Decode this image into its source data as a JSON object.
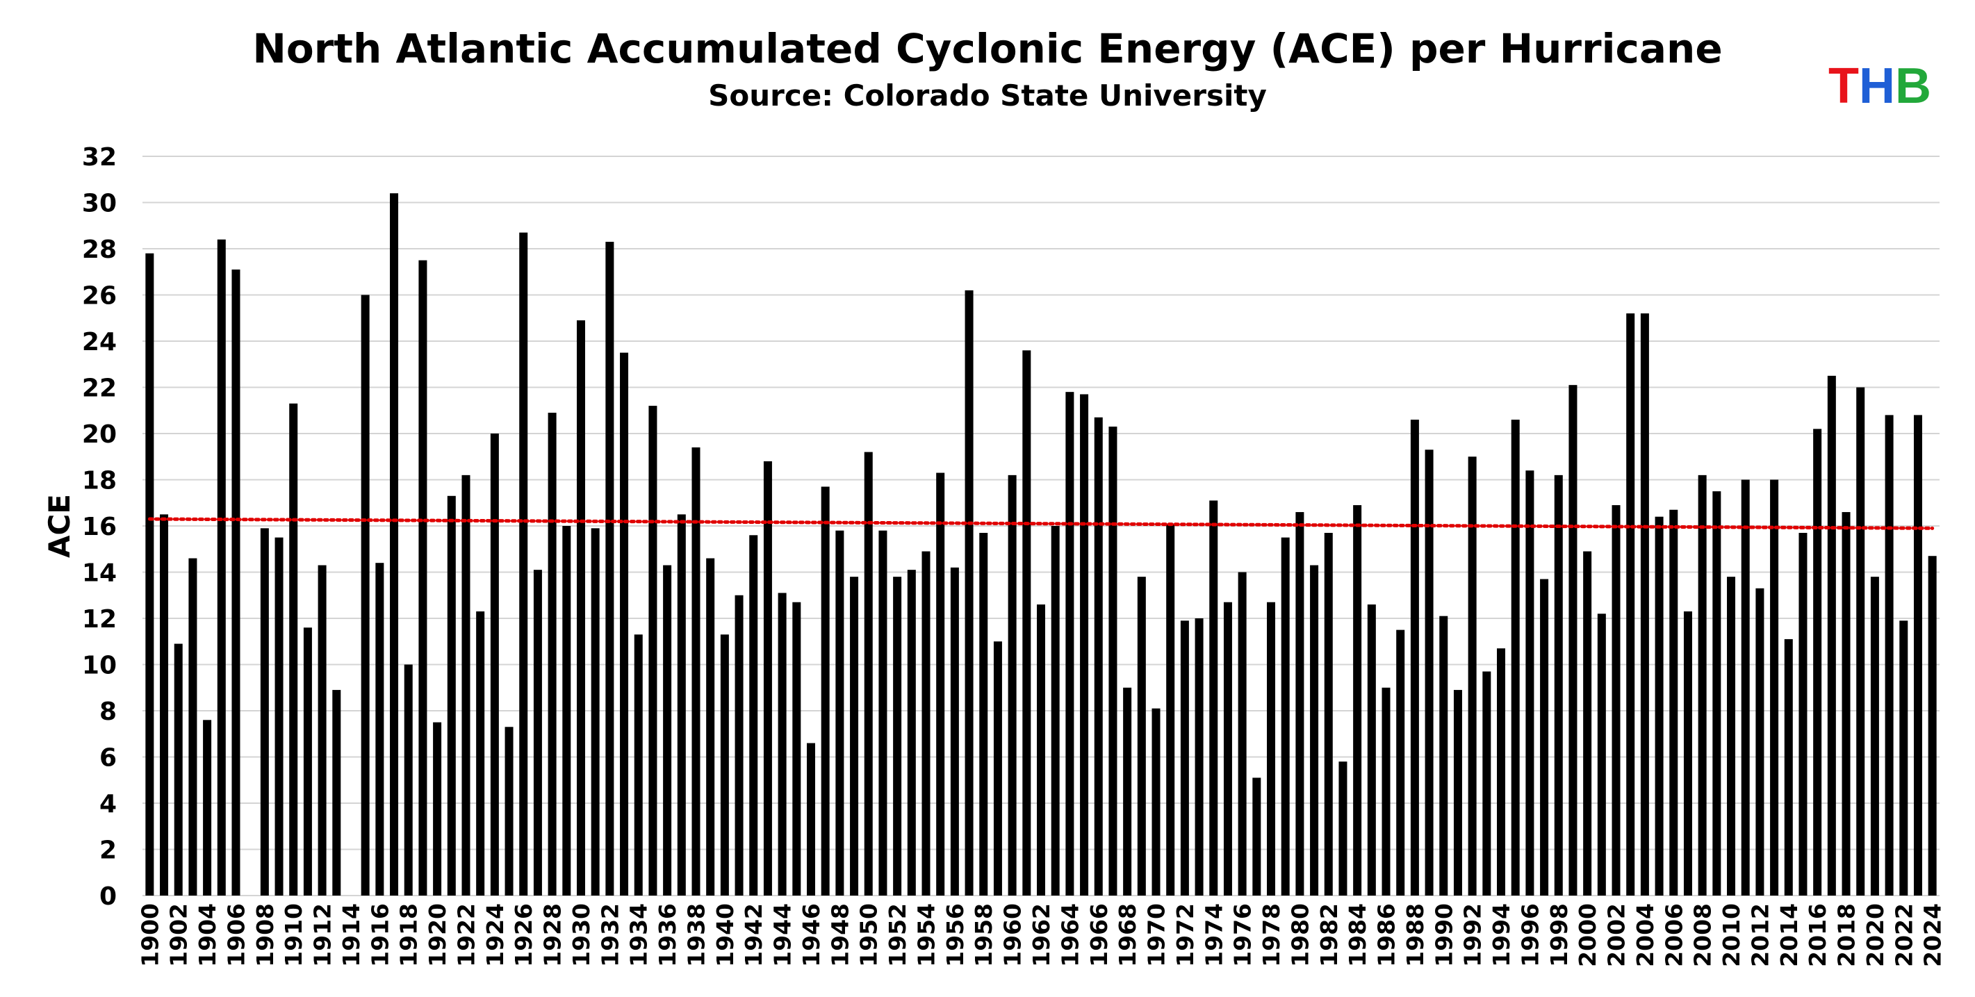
{
  "chart_data": {
    "type": "bar",
    "title": "North Atlantic Accumulated Cyclonic Energy (ACE) per Hurricane",
    "subtitle": "Source: Colorado State University",
    "logo": [
      "T",
      "H",
      "B"
    ],
    "logo_colors": [
      "#e8141b",
      "#1f5fd6",
      "#22a83a"
    ],
    "ylabel": "ACE",
    "color": "#000000",
    "grid": true,
    "ylim": [
      0,
      32
    ],
    "yticks": [
      0,
      2,
      4,
      6,
      8,
      10,
      12,
      14,
      16,
      18,
      20,
      22,
      24,
      26,
      28,
      30,
      32
    ],
    "trendline": {
      "start": 16.3,
      "end": 15.9,
      "color": "#e00000"
    },
    "categories": [
      "1900",
      null,
      "1902",
      null,
      "1904",
      null,
      "1906",
      null,
      "1908",
      null,
      "1910",
      null,
      "1912",
      null,
      "1914",
      null,
      "1916",
      null,
      "1918",
      null,
      "1920",
      null,
      "1922",
      null,
      "1924",
      null,
      "1926",
      null,
      "1928",
      null,
      "1930",
      null,
      "1932",
      null,
      "1934",
      null,
      "1936",
      null,
      "1938",
      null,
      "1940",
      null,
      "1942",
      null,
      "1944",
      null,
      "1946",
      null,
      "1948",
      null,
      "1950",
      null,
      "1952",
      null,
      "1954",
      null,
      "1956",
      null,
      "1958",
      null,
      "1960",
      null,
      "1962",
      null,
      "1964",
      null,
      "1966",
      null,
      "1968",
      null,
      "1970",
      null,
      "1972",
      null,
      "1974",
      null,
      "1976",
      null,
      "1978",
      null,
      "1980",
      null,
      "1982",
      null,
      "1984",
      null,
      "1986",
      null,
      "1988",
      null,
      "1990",
      null,
      "1992",
      null,
      "1994",
      null,
      "1996",
      null,
      "1998",
      null,
      "2000",
      null,
      "2002",
      null,
      "2004",
      null,
      "2006",
      null,
      "2008",
      null,
      "2010",
      null,
      "2012",
      null,
      "2014",
      null,
      "2016",
      null,
      "2018",
      null,
      "2020",
      null,
      "2022",
      null,
      "2024"
    ],
    "values": [
      27.8,
      16.5,
      10.9,
      14.6,
      7.6,
      28.4,
      27.1,
      null,
      15.9,
      15.5,
      21.3,
      11.6,
      14.3,
      8.9,
      null,
      26.0,
      14.4,
      30.4,
      10.0,
      27.5,
      7.5,
      17.3,
      18.2,
      12.3,
      20.0,
      7.3,
      28.7,
      14.1,
      20.9,
      16.0,
      24.9,
      15.9,
      28.3,
      23.5,
      11.3,
      21.2,
      14.3,
      16.5,
      19.4,
      14.6,
      11.3,
      13.0,
      15.6,
      18.8,
      13.1,
      12.7,
      6.6,
      17.7,
      15.8,
      13.8,
      19.2,
      15.8,
      13.8,
      14.1,
      14.9,
      18.3,
      14.2,
      26.2,
      15.7,
      11.0,
      18.2,
      23.6,
      12.6,
      16.0,
      21.8,
      21.7,
      20.7,
      20.3,
      9.0,
      13.8,
      8.1,
      16.1,
      11.9,
      12.0,
      17.1,
      12.7,
      14.0,
      5.1,
      12.7,
      15.5,
      16.6,
      14.3,
      15.7,
      5.8,
      16.9,
      12.6,
      9.0,
      11.5,
      20.6,
      19.3,
      12.1,
      8.9,
      19.0,
      9.7,
      10.7,
      20.6,
      18.4,
      13.7,
      18.2,
      22.1,
      14.9,
      12.2,
      16.9,
      25.2,
      25.2,
      16.4,
      16.7,
      12.3,
      18.2,
      17.5,
      13.8,
      18.0,
      13.3,
      18.0,
      11.1,
      15.7,
      20.2,
      22.5,
      16.6,
      22.0,
      13.8,
      20.8,
      11.9,
      20.8,
      14.7
    ]
  }
}
